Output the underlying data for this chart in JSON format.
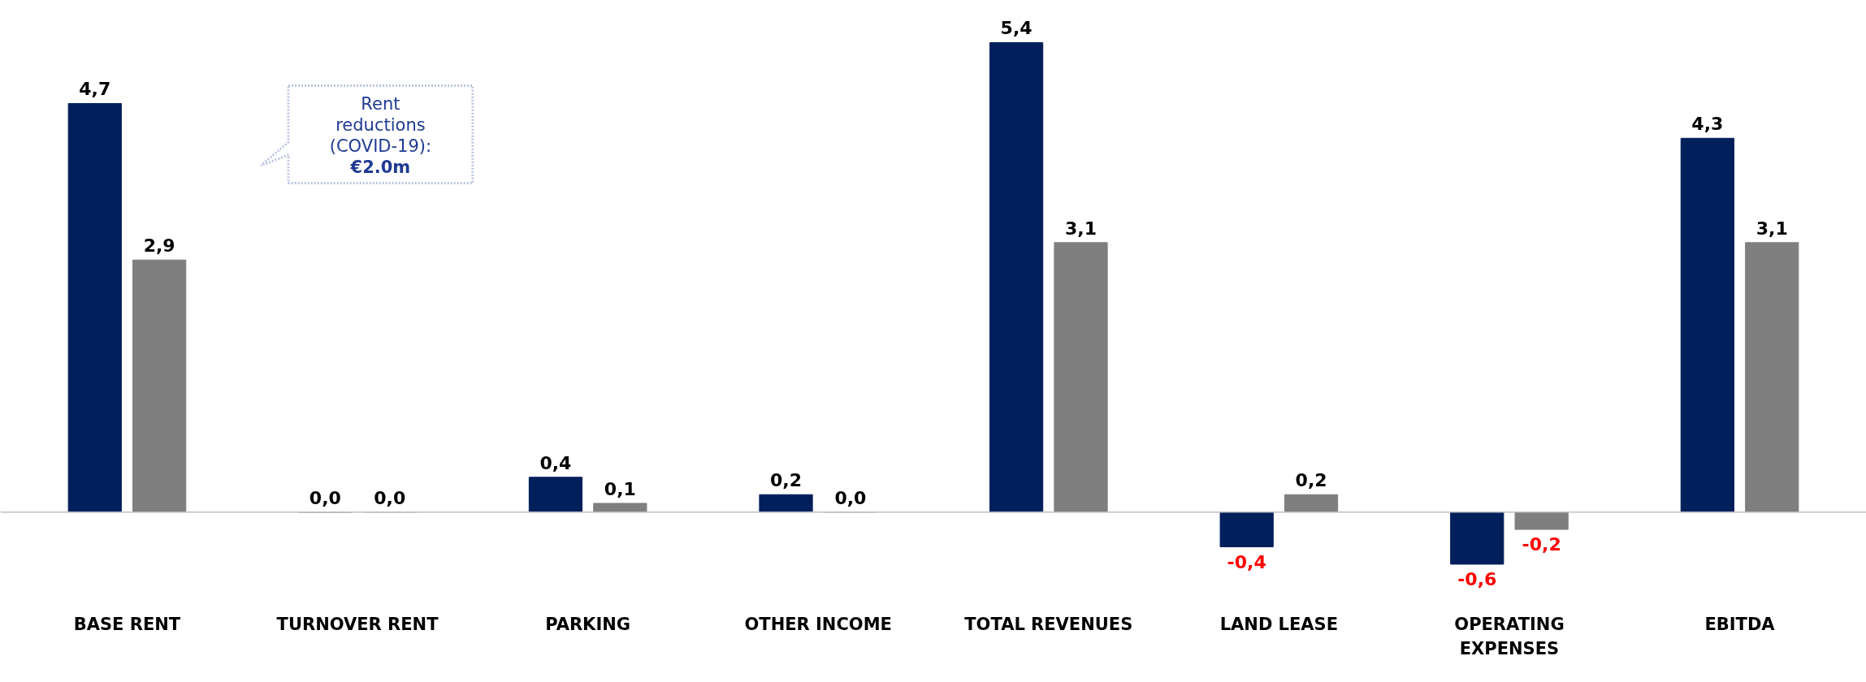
{
  "chart_data": {
    "type": "bar",
    "categories": [
      "BASE RENT",
      "TURNOVER RENT",
      "PARKING",
      "OTHER INCOME",
      "TOTAL REVENUES",
      "LAND LEASE",
      "OPERATING EXPENSES",
      "EBITDA"
    ],
    "series": [
      {
        "color": "#001f5b",
        "values": [
          4.7,
          0.0,
          0.4,
          0.2,
          5.4,
          -0.4,
          -0.6,
          4.3
        ],
        "value_labels": [
          "4,7",
          "0,0",
          "0,4",
          "0,2",
          "5,4",
          "-0,4",
          "-0,6",
          "4,3"
        ]
      },
      {
        "color": "#7f7f7f",
        "values": [
          2.9,
          0.0,
          0.1,
          0.0,
          3.1,
          0.2,
          -0.2,
          3.1
        ],
        "value_labels": [
          "2,9",
          "0,0",
          "0,1",
          "0,0",
          "3,1",
          "0,2",
          "-0,2",
          "3,1"
        ]
      }
    ],
    "annotations": [
      "Rent reductions (COVID-19): €2.0m"
    ],
    "grid": false
  }
}
